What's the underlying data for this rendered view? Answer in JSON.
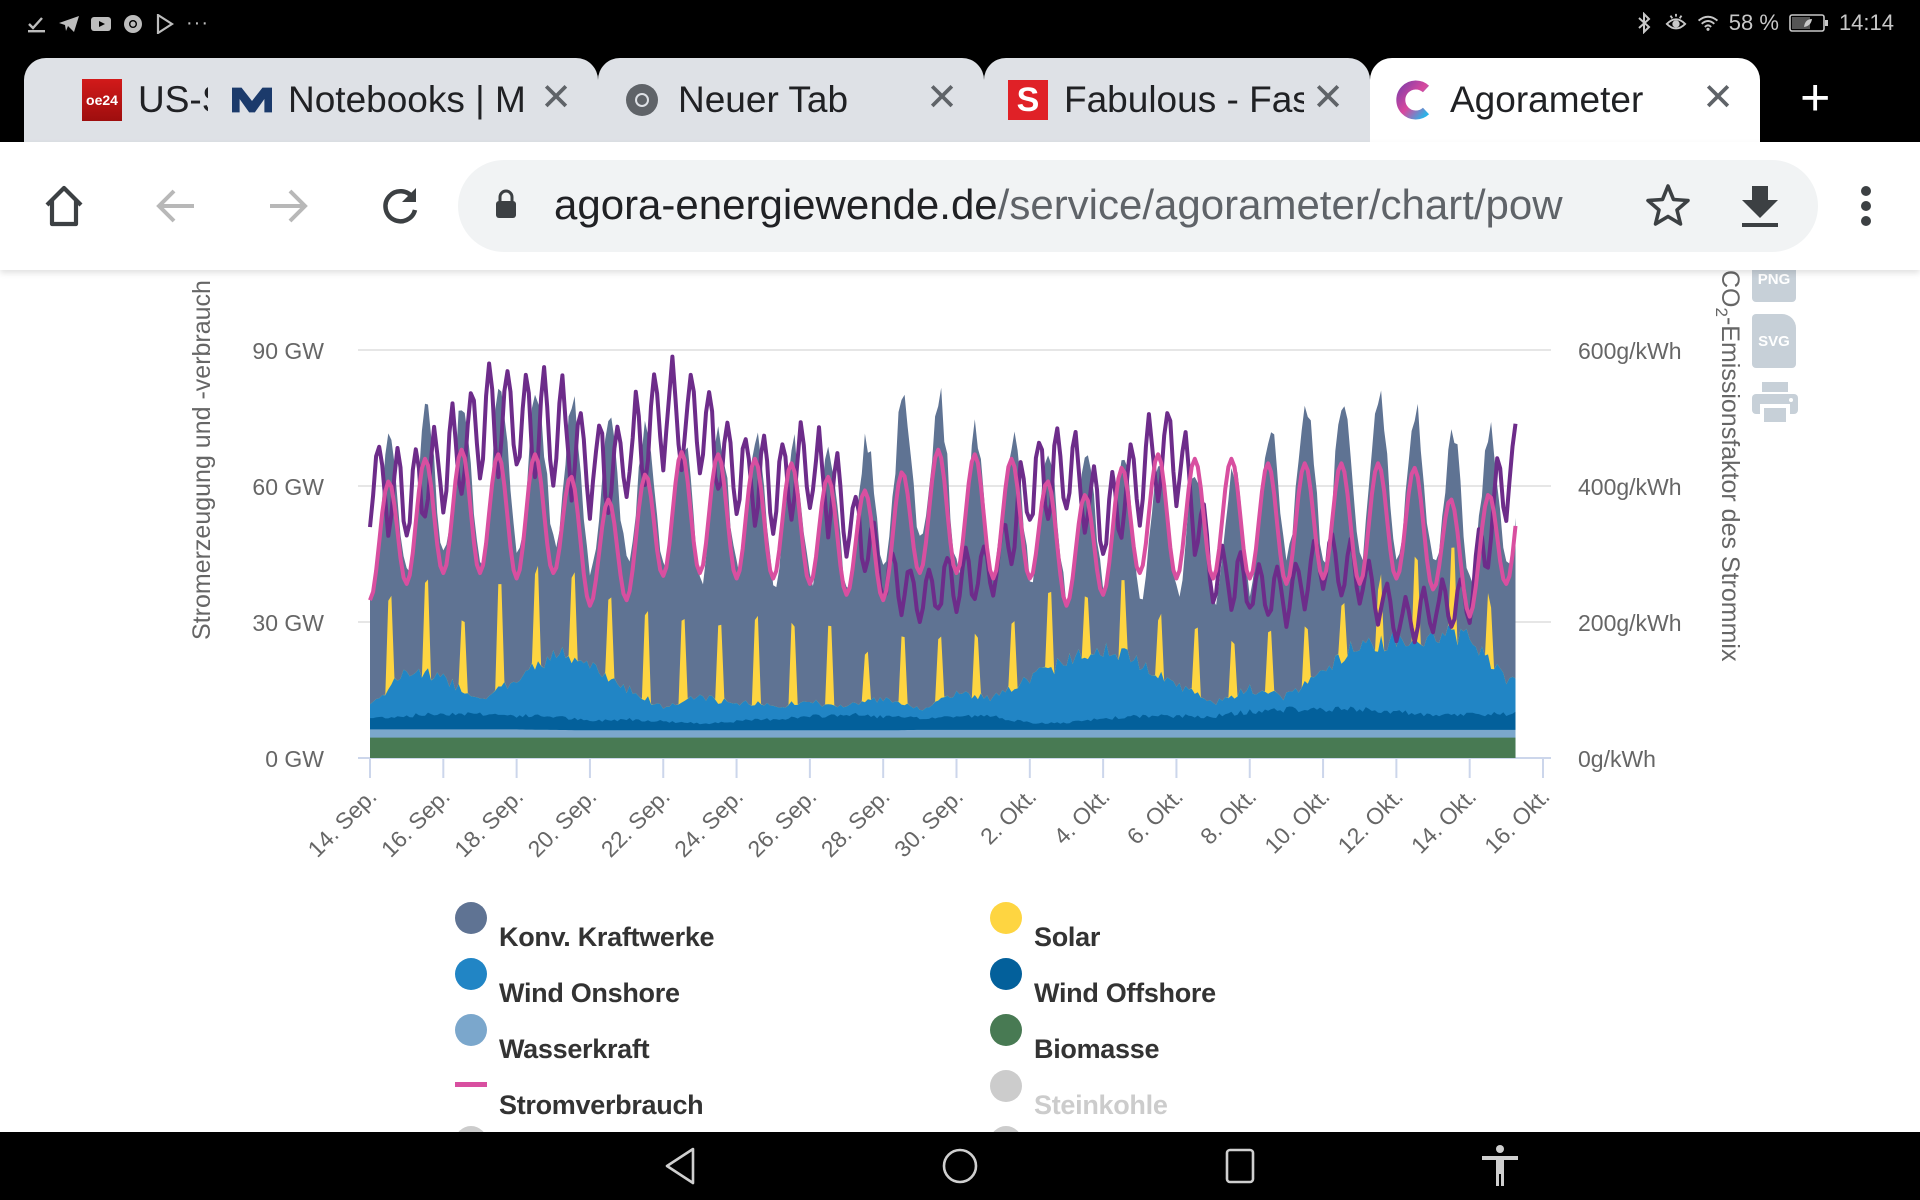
{
  "status_bar": {
    "left_icons": [
      "download-done-icon",
      "telegram-icon",
      "youtube-icon",
      "chrome-icon",
      "play-store-icon",
      "more-dots-icon"
    ],
    "battery_percent": "58 %",
    "time": "14:14",
    "right_icons": [
      "bluetooth-icon",
      "eye-comfort-icon",
      "wifi-icon",
      "battery-icon"
    ]
  },
  "tabs": [
    {
      "title": "US-S",
      "favicon": "oe24-favicon",
      "favicon_text": "oe24",
      "active": false
    },
    {
      "title": "Notebooks | M",
      "favicon": "m-logo-favicon",
      "active": false
    },
    {
      "title": "Neuer Tab",
      "favicon": "chrome-favicon",
      "active": false
    },
    {
      "title": "Fabulous - Fas",
      "favicon": "s-favicon",
      "favicon_text": "S",
      "active": false
    },
    {
      "title": "Agorameter",
      "favicon": "agora-favicon",
      "active": true
    }
  ],
  "new_tab_label": "+",
  "toolbar": {
    "url_domain": "agora-energiewende.de",
    "url_path": "/service/agorameter/chart/pow"
  },
  "export_buttons": {
    "png": "PNG",
    "svg": "SVG",
    "print": "print"
  },
  "legend": [
    {
      "label": "Konv. Kraftwerke",
      "color": "#5f7393",
      "type": "area",
      "visible": true
    },
    {
      "label": "Solar",
      "color": "#fed541",
      "type": "area",
      "visible": true
    },
    {
      "label": "Wind Onshore",
      "color": "#2185c5",
      "type": "area",
      "visible": true
    },
    {
      "label": "Wind Offshore",
      "color": "#03609b",
      "type": "area",
      "visible": true
    },
    {
      "label": "Wasserkraft",
      "color": "#7ba7cc",
      "type": "area",
      "visible": true
    },
    {
      "label": "Biomasse",
      "color": "#487a53",
      "type": "area",
      "visible": true
    },
    {
      "label": "Stromverbrauch",
      "color": "#d84fa0",
      "type": "line",
      "visible": true
    },
    {
      "label": "Steinkohle",
      "color": "#cccccc",
      "type": "area",
      "visible": false
    }
  ],
  "chart_data": {
    "type": "area",
    "title": "",
    "xlabel": "",
    "ylabel": "Stromerzeugung und -verbrauch",
    "ylabel_right": "CO2-Emissionsfaktor des Strommix",
    "ylim": [
      0,
      90
    ],
    "ylim_right": [
      0,
      600
    ],
    "yticks": [
      "0 GW",
      "30 GW",
      "60 GW",
      "90 GW"
    ],
    "yticks_right": [
      "0g/kWh",
      "200g/kWh",
      "400g/kWh",
      "600g/kWh"
    ],
    "x_start": "14. Sep.",
    "x_end": "16. Okt.",
    "xticks": [
      "14. Sep.",
      "16. Sep.",
      "18. Sep.",
      "20. Sep.",
      "22. Sep.",
      "24. Sep.",
      "26. Sep.",
      "28. Sep.",
      "30. Sep.",
      "2. Okt.",
      "4. Okt.",
      "6. Okt.",
      "8. Okt.",
      "10. Okt.",
      "12. Okt.",
      "14. Okt.",
      "16. Okt."
    ],
    "grid": true,
    "legend_position": "bottom",
    "resolution": "daily approximation (day index 0 = 14. Sep.)",
    "series": [
      {
        "name": "Biomasse",
        "unit": "GW",
        "color": "#487a53",
        "values": [
          4.5,
          4.5,
          4.5,
          4.5,
          4.5,
          4.5,
          4.5,
          4.5,
          4.5,
          4.5,
          4.5,
          4.5,
          4.5,
          4.5,
          4.5,
          4.5,
          4.5,
          4.5,
          4.5,
          4.5,
          4.5,
          4.5,
          4.5,
          4.5,
          4.5,
          4.5,
          4.5,
          4.5,
          4.5,
          4.5,
          4.5,
          4.5
        ]
      },
      {
        "name": "Wasserkraft",
        "unit": "GW",
        "color": "#7ba7cc",
        "values": [
          1.8,
          1.8,
          1.8,
          1.8,
          1.8,
          1.7,
          1.6,
          1.6,
          1.6,
          1.6,
          1.6,
          1.6,
          1.6,
          1.6,
          1.6,
          1.7,
          1.7,
          1.7,
          1.7,
          1.7,
          1.7,
          1.7,
          1.7,
          1.7,
          1.7,
          1.7,
          1.7,
          1.7,
          1.7,
          1.7,
          1.7,
          1.7
        ]
      },
      {
        "name": "Wind Offshore",
        "unit": "GW",
        "color": "#03609b",
        "values": [
          2.5,
          3.0,
          3.5,
          3.5,
          3.0,
          3.0,
          2.0,
          2.5,
          2.0,
          1.5,
          2.0,
          2.5,
          3.0,
          3.5,
          3.0,
          2.5,
          3.0,
          3.0,
          1.5,
          1.5,
          2.5,
          3.0,
          3.0,
          3.0,
          4.0,
          4.5,
          4.5,
          4.5,
          4.0,
          3.0,
          3.5,
          3.5
        ]
      },
      {
        "name": "Wind Onshore",
        "unit": "GW",
        "color": "#2185c5",
        "values": [
          3,
          10,
          8,
          3,
          8,
          14,
          12,
          7,
          3,
          6,
          4,
          3,
          3,
          2,
          4,
          2,
          5,
          4,
          10,
          14,
          16,
          12,
          7,
          3,
          5,
          3,
          9,
          14,
          16,
          18,
          17,
          8
        ]
      },
      {
        "name": "Solar",
        "unit": "GW peak",
        "color": "#fed541",
        "values": [
          26,
          26,
          21,
          30,
          28,
          25,
          24,
          25,
          24,
          23,
          25,
          23,
          23,
          14,
          20,
          18,
          18,
          20,
          22,
          18,
          20,
          17,
          19,
          16,
          18,
          16,
          17,
          18,
          24,
          24,
          18,
          20
        ]
      },
      {
        "name": "Konv. Kraftwerke",
        "unit": "GW (top of stack)",
        "color": "#5f7393",
        "values": [
          66,
          72,
          80,
          78,
          80,
          84,
          74,
          76,
          74,
          70,
          74,
          68,
          70,
          66,
          74,
          86,
          74,
          70,
          72,
          62,
          68,
          64,
          66,
          62,
          66,
          80,
          78,
          80,
          80,
          74,
          70,
          74
        ]
      },
      {
        "name": "Stromverbrauch",
        "unit": "GW",
        "type": "line",
        "color": "#d84fa0",
        "values": [
          58,
          64,
          68,
          68,
          66,
          68,
          56,
          58,
          67,
          68,
          66,
          66,
          64,
          60,
          58,
          68,
          68,
          66,
          66,
          56,
          60,
          68,
          66,
          66,
          66,
          64,
          66,
          64,
          66,
          62,
          52,
          64
        ]
      },
      {
        "name": "CO2-Emissionsfaktor",
        "unit": "g/kWh",
        "type": "line",
        "axis": "right",
        "color": "#6d2c8a",
        "values": [
          450,
          420,
          470,
          540,
          540,
          540,
          470,
          480,
          560,
          540,
          460,
          440,
          470,
          400,
          300,
          260,
          290,
          300,
          440,
          470,
          380,
          460,
          500,
          300,
          280,
          260,
          320,
          300,
          220,
          240,
          260,
          470
        ]
      }
    ]
  },
  "navbar": {
    "icons": [
      "back-icon",
      "home-icon",
      "recents-icon",
      "accessibility-icon"
    ]
  }
}
